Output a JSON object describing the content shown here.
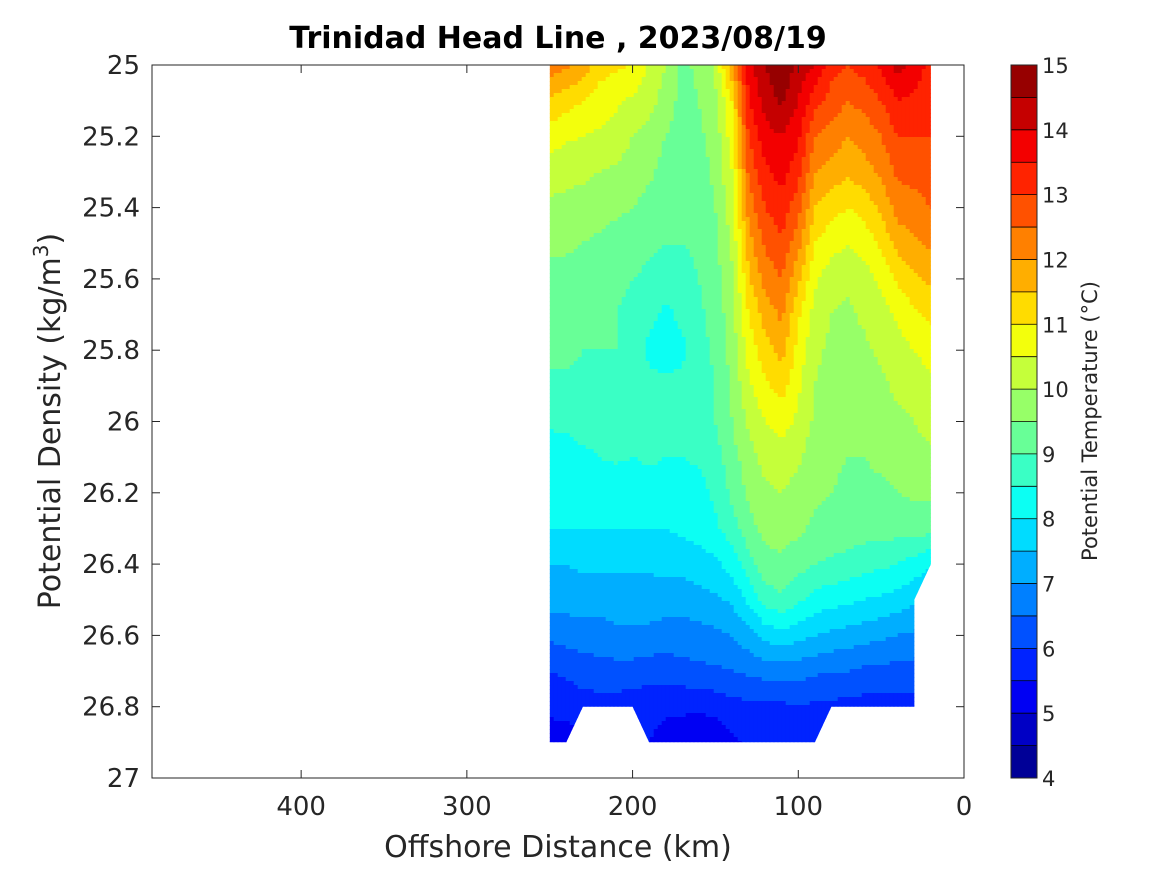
{
  "chart_data": {
    "type": "heatmap",
    "subtype": "filled-contour",
    "title": "Trinidad Head Line , 2023/08/19",
    "xlabel": "Offshore Distance (km)",
    "ylabel": "Potential Density (kg/m3)",
    "ylabel_main": "Potential Density (kg/m",
    "ylabel_sup": "3",
    "ylabel_close": ")",
    "xlim": [
      490,
      0
    ],
    "x_reversed": true,
    "ylim": [
      25,
      27
    ],
    "y_reversed": true,
    "xticks": [
      400,
      300,
      200,
      100,
      0
    ],
    "yticks": [
      25,
      25.2,
      25.4,
      25.6,
      25.8,
      26,
      26.2,
      26.4,
      26.6,
      26.8,
      27
    ],
    "x_tick_labels": [
      "400",
      "300",
      "200",
      "100",
      "0"
    ],
    "y_tick_labels": [
      "25",
      "25.2",
      "25.4",
      "25.6",
      "25.8",
      "26",
      "26.2",
      "26.4",
      "26.6",
      "26.8",
      "27"
    ],
    "colorbar": {
      "label": "Potential Temperature (°C)",
      "range": [
        4,
        15
      ],
      "ticks": [
        4,
        5,
        6,
        7,
        8,
        9,
        10,
        11,
        12,
        13,
        14,
        15
      ],
      "tick_labels": [
        "4",
        "5",
        "6",
        "7",
        "8",
        "9",
        "10",
        "11",
        "12",
        "13",
        "14",
        "15"
      ],
      "levels": [
        4,
        4.5,
        5,
        5.5,
        6,
        6.5,
        7,
        7.5,
        8,
        8.5,
        9,
        9.5,
        10,
        10.5,
        11,
        11.5,
        12,
        12.5,
        13,
        13.5,
        14,
        14.5,
        15
      ],
      "colormap": "jet"
    },
    "x": [
      250,
      240,
      230,
      220,
      210,
      200,
      190,
      180,
      170,
      160,
      150,
      140,
      130,
      120,
      110,
      100,
      90,
      80,
      70,
      60,
      50,
      40,
      30,
      20
    ],
    "y": [
      25,
      25.1,
      25.2,
      25.3,
      25.4,
      25.5,
      25.6,
      25.7,
      25.8,
      25.9,
      26,
      26.1,
      26.2,
      26.3,
      26.4,
      26.5,
      26.6,
      26.7,
      26.8,
      26.9
    ],
    "z": [
      [
        12.3,
        12.1,
        11.8,
        11.2,
        11.1,
        11.0,
        10.4,
        10.0,
        9.4,
        9.6,
        10.1,
        12.0,
        13.8,
        14.5,
        15.0,
        14.3,
        14.0,
        13.2,
        13.0,
        13.2,
        13.6,
        14.2,
        13.8,
        13.3
      ],
      [
        11.4,
        11.2,
        11.0,
        10.8,
        10.6,
        10.4,
        10.2,
        9.8,
        9.3,
        9.5,
        9.9,
        11.0,
        13.5,
        14.2,
        14.6,
        14.0,
        13.2,
        12.8,
        12.5,
        12.7,
        13.0,
        13.5,
        13.4,
        13.2
      ],
      [
        10.8,
        10.6,
        10.5,
        10.4,
        10.3,
        10.0,
        9.8,
        9.5,
        9.3,
        9.4,
        9.7,
        10.8,
        13.0,
        13.8,
        14.0,
        13.6,
        12.5,
        12.3,
        12.0,
        12.2,
        12.5,
        13.0,
        13.0,
        13.0
      ],
      [
        10.2,
        10.1,
        10.1,
        10.0,
        9.9,
        9.8,
        9.6,
        9.3,
        9.2,
        9.3,
        9.6,
        10.5,
        12.6,
        13.4,
        13.7,
        13.2,
        12.0,
        11.8,
        11.6,
        11.8,
        12.1,
        12.6,
        12.7,
        12.8
      ],
      [
        9.9,
        9.9,
        9.8,
        9.7,
        9.6,
        9.5,
        9.3,
        9.2,
        9.1,
        9.2,
        9.5,
        10.3,
        12.2,
        13.0,
        13.3,
        12.7,
        11.5,
        11.2,
        11.0,
        11.2,
        11.6,
        12.2,
        12.3,
        12.5
      ],
      [
        9.6,
        9.6,
        9.5,
        9.4,
        9.3,
        9.2,
        9.1,
        9.0,
        9.0,
        9.1,
        9.4,
        10.1,
        11.8,
        12.6,
        12.9,
        12.2,
        11.0,
        10.7,
        10.5,
        10.7,
        11.1,
        11.7,
        11.9,
        12.1
      ],
      [
        9.3,
        9.3,
        9.3,
        9.2,
        9.1,
        9.0,
        8.9,
        8.7,
        8.8,
        9.0,
        9.3,
        9.9,
        11.4,
        12.2,
        12.5,
        11.6,
        10.6,
        10.2,
        10.1,
        10.3,
        10.6,
        11.1,
        11.4,
        11.6
      ],
      [
        9.2,
        9.2,
        9.1,
        9.1,
        9.0,
        8.9,
        8.6,
        8.4,
        8.6,
        8.9,
        9.2,
        9.8,
        11.0,
        11.7,
        12.1,
        11.1,
        10.3,
        10.0,
        9.9,
        10.1,
        10.3,
        10.6,
        10.9,
        11.1
      ],
      [
        9.1,
        9.1,
        9.0,
        9.0,
        9.0,
        8.8,
        8.4,
        8.3,
        8.4,
        8.8,
        9.1,
        9.7,
        10.7,
        11.3,
        11.7,
        10.8,
        10.1,
        9.9,
        9.8,
        9.9,
        10.1,
        10.3,
        10.5,
        10.7
      ],
      [
        8.9,
        8.9,
        8.9,
        8.9,
        8.9,
        8.8,
        8.6,
        8.6,
        8.6,
        8.8,
        9.0,
        9.6,
        10.4,
        10.9,
        11.2,
        10.6,
        10.0,
        9.8,
        9.7,
        9.8,
        9.9,
        10.1,
        10.2,
        10.4
      ],
      [
        8.6,
        8.6,
        8.7,
        8.7,
        8.8,
        8.8,
        8.8,
        8.8,
        8.7,
        8.8,
        9.0,
        9.5,
        10.1,
        10.5,
        10.7,
        10.4,
        9.9,
        9.7,
        9.6,
        9.7,
        9.8,
        9.9,
        10.0,
        10.2
      ],
      [
        8.2,
        8.3,
        8.4,
        8.5,
        8.6,
        8.5,
        8.6,
        8.5,
        8.5,
        8.6,
        8.8,
        9.3,
        9.8,
        10.2,
        10.3,
        10.1,
        9.7,
        9.6,
        9.5,
        9.5,
        9.6,
        9.7,
        9.8,
        9.9
      ],
      [
        8.1,
        8.1,
        8.1,
        8.1,
        8.1,
        8.1,
        8.2,
        8.2,
        8.1,
        8.3,
        8.6,
        9.1,
        9.6,
        9.9,
        10.0,
        9.8,
        9.6,
        9.5,
        9.4,
        9.4,
        9.4,
        9.5,
        9.6,
        9.6
      ],
      [
        8.0,
        8.0,
        8.0,
        8.0,
        8.0,
        8.0,
        8.0,
        8.0,
        8.1,
        8.2,
        8.4,
        8.8,
        9.3,
        9.7,
        9.7,
        9.6,
        9.4,
        9.3,
        9.3,
        9.2,
        9.2,
        9.2,
        9.2,
        9.2
      ],
      [
        7.5,
        7.5,
        7.6,
        7.6,
        7.6,
        7.6,
        7.6,
        7.7,
        7.7,
        7.8,
        7.9,
        8.2,
        8.8,
        9.3,
        9.4,
        9.2,
        9.0,
        8.9,
        8.8,
        8.7,
        8.6,
        8.5,
        8.3,
        8.0
      ],
      [
        7.2,
        7.2,
        7.2,
        7.2,
        7.2,
        7.2,
        7.2,
        7.2,
        7.2,
        7.3,
        7.4,
        7.6,
        8.1,
        8.7,
        8.9,
        8.6,
        8.3,
        8.2,
        8.1,
        8.0,
        7.9,
        7.8,
        7.6,
        7.5
      ],
      [
        6.6,
        6.7,
        6.8,
        6.8,
        6.9,
        6.9,
        6.9,
        6.8,
        6.8,
        6.8,
        6.9,
        7.0,
        7.3,
        7.7,
        7.8,
        7.7,
        7.5,
        7.4,
        7.3,
        7.2,
        7.1,
        7.0,
        6.9,
        6.8
      ],
      [
        6.0,
        6.1,
        6.2,
        6.3,
        6.3,
        6.3,
        6.2,
        6.2,
        6.3,
        6.4,
        6.4,
        6.5,
        6.6,
        6.7,
        6.7,
        6.7,
        6.6,
        6.5,
        6.5,
        6.4,
        6.4,
        6.3,
        6.3,
        6.2
      ],
      [
        5.7,
        5.7,
        5.8,
        5.8,
        5.8,
        5.7,
        5.7,
        5.6,
        5.6,
        5.6,
        5.7,
        5.8,
        5.9,
        5.9,
        5.9,
        6.0,
        5.9,
        5.9,
        5.8,
        5.8,
        5.8,
        5.8,
        5.8,
        5.8
      ],
      [
        5.1,
        5.2,
        5.4,
        5.5,
        5.5,
        5.5,
        5.5,
        5.3,
        5.2,
        5.0,
        5.1,
        5.4,
        5.6,
        5.6,
        5.6,
        5.6,
        5.5,
        5.5,
        5.5,
        5.5,
        5.5,
        5.5,
        5.5,
        5.5
      ]
    ],
    "data_extent": [
      [
        250,
        25
      ],
      [
        20,
        25
      ],
      [
        20,
        26.4
      ],
      [
        30,
        26.5
      ],
      [
        30,
        26.8
      ],
      [
        80,
        26.8
      ],
      [
        90,
        26.9
      ],
      [
        120,
        26.9
      ],
      [
        190,
        26.9
      ],
      [
        200,
        26.8
      ],
      [
        230,
        26.8
      ],
      [
        240,
        26.9
      ],
      [
        250,
        26.9
      ]
    ],
    "grid": false,
    "legend": "none"
  }
}
